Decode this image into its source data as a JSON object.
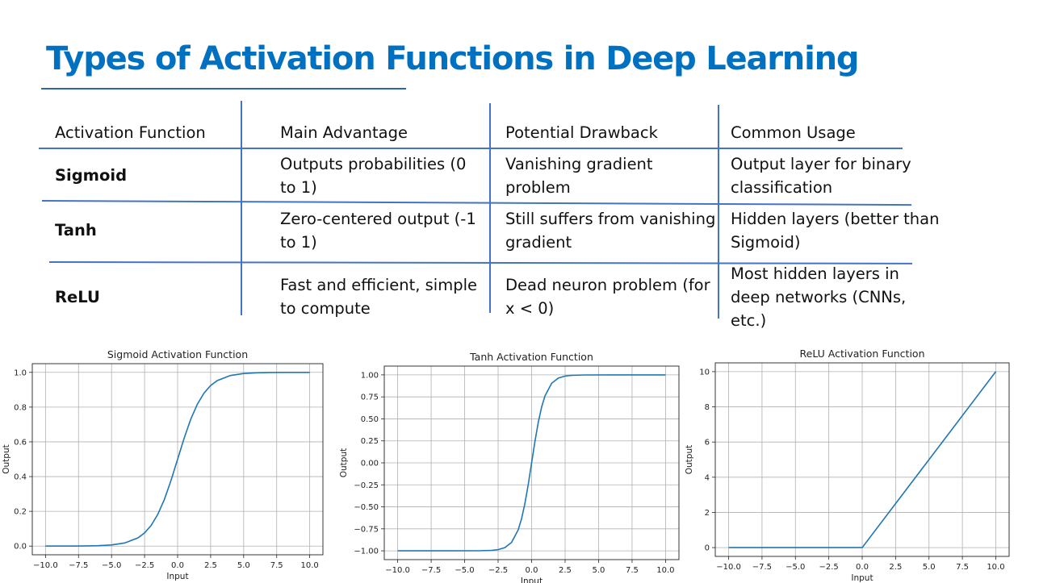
{
  "title": "Types of Activation Functions in Deep Learning",
  "table": {
    "headers": [
      "Activation Function",
      "Main Advantage",
      "Potential Drawback",
      "Common Usage"
    ],
    "rows": [
      {
        "name": "Sigmoid",
        "advantage": [
          "Outputs probabilities (0",
          "to 1)"
        ],
        "drawback": [
          "Vanishing gradient",
          "problem"
        ],
        "usage": [
          "Output layer for binary",
          "classification"
        ]
      },
      {
        "name": "Tanh",
        "advantage": [
          "Zero-centered output (-1",
          "to 1)"
        ],
        "drawback": [
          "Still suffers from vanishing",
          "gradient"
        ],
        "usage": [
          "Hidden layers (better than",
          "Sigmoid)"
        ]
      },
      {
        "name": "ReLU",
        "advantage": [
          "Fast and efficient, simple",
          "to compute"
        ],
        "drawback": [
          "Dead neuron problem (for",
          "x < 0)"
        ],
        "usage": [
          "Most hidden layers in",
          "deep networks (CNNs,",
          "etc.)"
        ]
      }
    ]
  },
  "colors": {
    "title": "#0070c0",
    "rule": "#4472c4",
    "curve": "#1f77b4",
    "grid": "#b0b0b0"
  },
  "chart_data": [
    {
      "type": "line",
      "function": "sigmoid",
      "title": "Sigmoid Activation Function",
      "xlabel": "Input",
      "ylabel": "Output",
      "xlim": [
        -11,
        11
      ],
      "ylim": [
        -0.05,
        1.05
      ],
      "grid": true,
      "x": [
        -10,
        -9,
        -8,
        -7,
        -6,
        -5,
        -4,
        -3,
        -2.5,
        -2,
        -1.5,
        -1,
        -0.5,
        0,
        0.5,
        1,
        1.5,
        2,
        2.5,
        3,
        4,
        5,
        6,
        7,
        8,
        9,
        10
      ],
      "y": [
        0.0,
        0.0001,
        0.0003,
        0.0009,
        0.0025,
        0.0067,
        0.018,
        0.0474,
        0.0759,
        0.1192,
        0.1824,
        0.2689,
        0.3775,
        0.5,
        0.6225,
        0.7311,
        0.8176,
        0.8808,
        0.9241,
        0.9526,
        0.982,
        0.9933,
        0.9975,
        0.9991,
        0.9997,
        0.9999,
        1.0
      ],
      "xticks": [
        "−10.0",
        "−7.5",
        "−5.0",
        "−2.5",
        "0.0",
        "2.5",
        "5.0",
        "7.5",
        "10.0"
      ],
      "yticks": [
        "0.0",
        "0.2",
        "0.4",
        "0.6",
        "0.8",
        "1.0"
      ]
    },
    {
      "type": "line",
      "function": "tanh",
      "title": "Tanh Activation Function",
      "xlabel": "Input",
      "ylabel": "Output",
      "xlim": [
        -11,
        11
      ],
      "ylim": [
        -1.1,
        1.1
      ],
      "grid": true,
      "x": [
        -10,
        -8,
        -6,
        -4,
        -3,
        -2.5,
        -2,
        -1.5,
        -1,
        -0.75,
        -0.5,
        -0.25,
        0,
        0.25,
        0.5,
        0.75,
        1,
        1.5,
        2,
        2.5,
        3,
        4,
        6,
        8,
        10
      ],
      "y": [
        -1.0,
        -1.0,
        -1.0,
        -0.9993,
        -0.9951,
        -0.9866,
        -0.964,
        -0.9051,
        -0.7616,
        -0.6351,
        -0.4621,
        -0.2449,
        0.0,
        0.2449,
        0.4621,
        0.6351,
        0.7616,
        0.9051,
        0.964,
        0.9866,
        0.9951,
        0.9993,
        1.0,
        1.0,
        1.0
      ],
      "xticks": [
        "−10.0",
        "−7.5",
        "−5.0",
        "−2.5",
        "0.0",
        "2.5",
        "5.0",
        "7.5",
        "10.0"
      ],
      "yticks": [
        "−1.00",
        "−0.75",
        "−0.50",
        "−0.25",
        "0.00",
        "0.25",
        "0.50",
        "0.75",
        "1.00"
      ]
    },
    {
      "type": "line",
      "function": "relu",
      "title": "ReLU Activation Function",
      "xlabel": "Input",
      "ylabel": "Output",
      "xlim": [
        -11,
        11
      ],
      "ylim": [
        -0.5,
        10.5
      ],
      "grid": true,
      "x": [
        -10,
        -5,
        0,
        5,
        10
      ],
      "y": [
        0,
        0,
        0,
        5,
        10
      ],
      "xticks": [
        "−10.0",
        "−7.5",
        "−5.0",
        "−2.5",
        "0.0",
        "2.5",
        "5.0",
        "7.5",
        "10.0"
      ],
      "yticks": [
        "0",
        "2",
        "4",
        "6",
        "8",
        "10"
      ]
    }
  ]
}
